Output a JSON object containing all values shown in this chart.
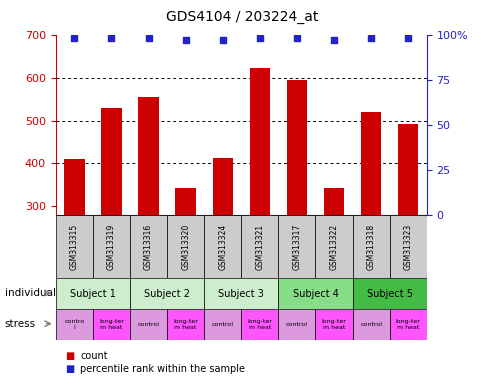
{
  "title": "GDS4104 / 203224_at",
  "samples": [
    "GSM313315",
    "GSM313319",
    "GSM313316",
    "GSM313320",
    "GSM313324",
    "GSM313321",
    "GSM313317",
    "GSM313322",
    "GSM313318",
    "GSM313323"
  ],
  "counts": [
    410,
    530,
    555,
    343,
    412,
    622,
    595,
    343,
    520,
    492
  ],
  "percentile_ranks": [
    98,
    98,
    98,
    97,
    97,
    98,
    98,
    97,
    98,
    98
  ],
  "ylim_left": [
    280,
    700
  ],
  "ylim_right": [
    0,
    100
  ],
  "yticks_left": [
    300,
    400,
    500,
    600,
    700
  ],
  "yticks_right": [
    0,
    25,
    50,
    75,
    100
  ],
  "bar_color": "#cc0000",
  "dot_color": "#2222cc",
  "subjects": [
    {
      "label": "Subject 1",
      "start": 0,
      "end": 2,
      "color": "#cceecc"
    },
    {
      "label": "Subject 2",
      "start": 2,
      "end": 4,
      "color": "#cceecc"
    },
    {
      "label": "Subject 3",
      "start": 4,
      "end": 6,
      "color": "#cceecc"
    },
    {
      "label": "Subject 4",
      "start": 6,
      "end": 8,
      "color": "#88dd88"
    },
    {
      "label": "Subject 5",
      "start": 8,
      "end": 10,
      "color": "#44bb44"
    }
  ],
  "stress_labels": [
    "contro\nl",
    "long-ter\nm heat",
    "control",
    "long-ter\nm heat",
    "control",
    "long-ter\nm heat",
    "control",
    "long-ter\nm heat",
    "control",
    "long-ter\nm heat"
  ],
  "stress_colors": [
    "#dd99dd",
    "#ff55ff",
    "#dd99dd",
    "#ff55ff",
    "#dd99dd",
    "#ff55ff",
    "#dd99dd",
    "#ff55ff",
    "#dd99dd",
    "#ff55ff"
  ],
  "sample_bg_color": "#cccccc",
  "axis_left_color": "#cc0000",
  "axis_right_color": "#2222cc",
  "right_tick_labels": [
    "0",
    "25",
    "50",
    "75",
    "100%"
  ],
  "hgrid_vals": [
    400,
    500,
    600
  ],
  "legend_items": [
    {
      "color": "#cc0000",
      "label": "count"
    },
    {
      "color": "#2222cc",
      "label": "percentile rank within the sample"
    }
  ]
}
